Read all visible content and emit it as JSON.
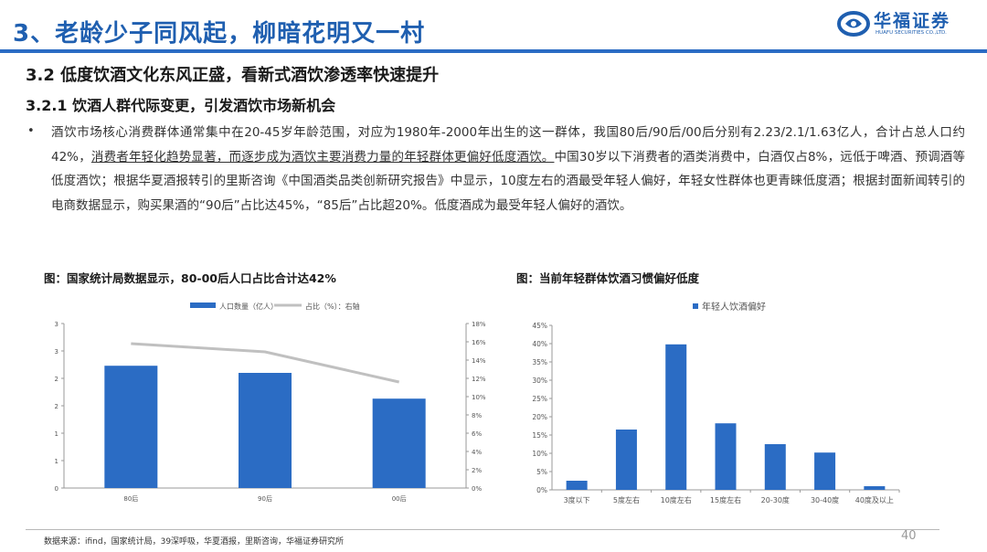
{
  "header": {
    "title": "3、老龄少子同风起，柳暗花明又一村",
    "logo_cn": "华福证券",
    "logo_en": "HUAFU SECURITIES CO.,LTD."
  },
  "section": {
    "h2": "3.2 低度饮酒文化东风正盛，看新式酒饮渗透率快速提升",
    "h3": "3.2.1 饮酒人群代际变更，引发酒饮市场新机会"
  },
  "body": {
    "bullet": "•",
    "part1": "酒饮市场核心消费群体通常集中在20-45岁年龄范围，对应为1980年-2000年出生的这一群体，我国80后/90后/00后分别有2.23/2.1/1.63亿人，合计占总人口约42%，",
    "part2_underlined": "消费者年轻化趋势显著，而逐步成为酒饮主要消费力量的年轻群体更偏好低度酒饮。",
    "part3": "中国30岁以下消费者的酒类消费中，白酒仅占8%，远低于啤酒、预调酒等低度酒饮；根据华夏酒报转引的里斯咨询《中国酒类品类创新研究报告》中显示，10度左右的酒最受年轻人偏好，年轻女性群体也更青睐低度酒；根据封面新闻转引的电商数据显示，购买果酒的“90后”占比达45%，“85后”占比超20%。低度酒成为最受年轻人偏好的酒饮。"
  },
  "figures": {
    "left_caption": "图：国家统计局数据显示，80-00后人口占比合计达42%",
    "right_caption": "图：当前年轻群体饮酒习惯偏好低度"
  },
  "chart_data": [
    {
      "type": "bar",
      "categories": [
        "80后",
        "90后",
        "00后"
      ],
      "series": [
        {
          "name": "人口数量（亿人）",
          "axis": "left",
          "kind": "bar",
          "values": [
            2.23,
            2.1,
            1.63
          ],
          "color": "#2b6cc4"
        },
        {
          "name": "占比（%）：右轴",
          "axis": "right",
          "kind": "line",
          "values": [
            15.8,
            14.9,
            11.6
          ],
          "color": "#c0c0c0"
        }
      ],
      "y_left": {
        "ylim": [
          0,
          3
        ],
        "ticks": [
          "0",
          "1",
          "1",
          "2",
          "2",
          "3",
          "3"
        ]
      },
      "y_right": {
        "ylim": [
          0,
          18
        ],
        "ticks": [
          "0%",
          "2%",
          "4%",
          "6%",
          "8%",
          "10%",
          "12%",
          "14%",
          "16%",
          "18%"
        ]
      },
      "legend": "top-center",
      "grid": false
    },
    {
      "type": "bar",
      "categories": [
        "3度以下",
        "5度左右",
        "10度左右",
        "15度左右",
        "20-30度",
        "30-40度",
        "40度及以上"
      ],
      "series": [
        {
          "name": "年轻人饮酒偏好",
          "values": [
            2.5,
            16.5,
            39.8,
            18.2,
            12.5,
            10.2,
            1.0
          ],
          "color": "#2b6cc4"
        }
      ],
      "ylim": [
        0,
        45
      ],
      "y_ticks": [
        "0%",
        "5%",
        "10%",
        "15%",
        "20%",
        "25%",
        "30%",
        "35%",
        "40%",
        "45%"
      ],
      "legend": "top-center",
      "grid": false
    }
  ],
  "footer": {
    "source": "数据来源：ifind，国家统计局，39深呼吸，华夏酒报，里斯咨询，华福证券研究所",
    "page": "40"
  }
}
